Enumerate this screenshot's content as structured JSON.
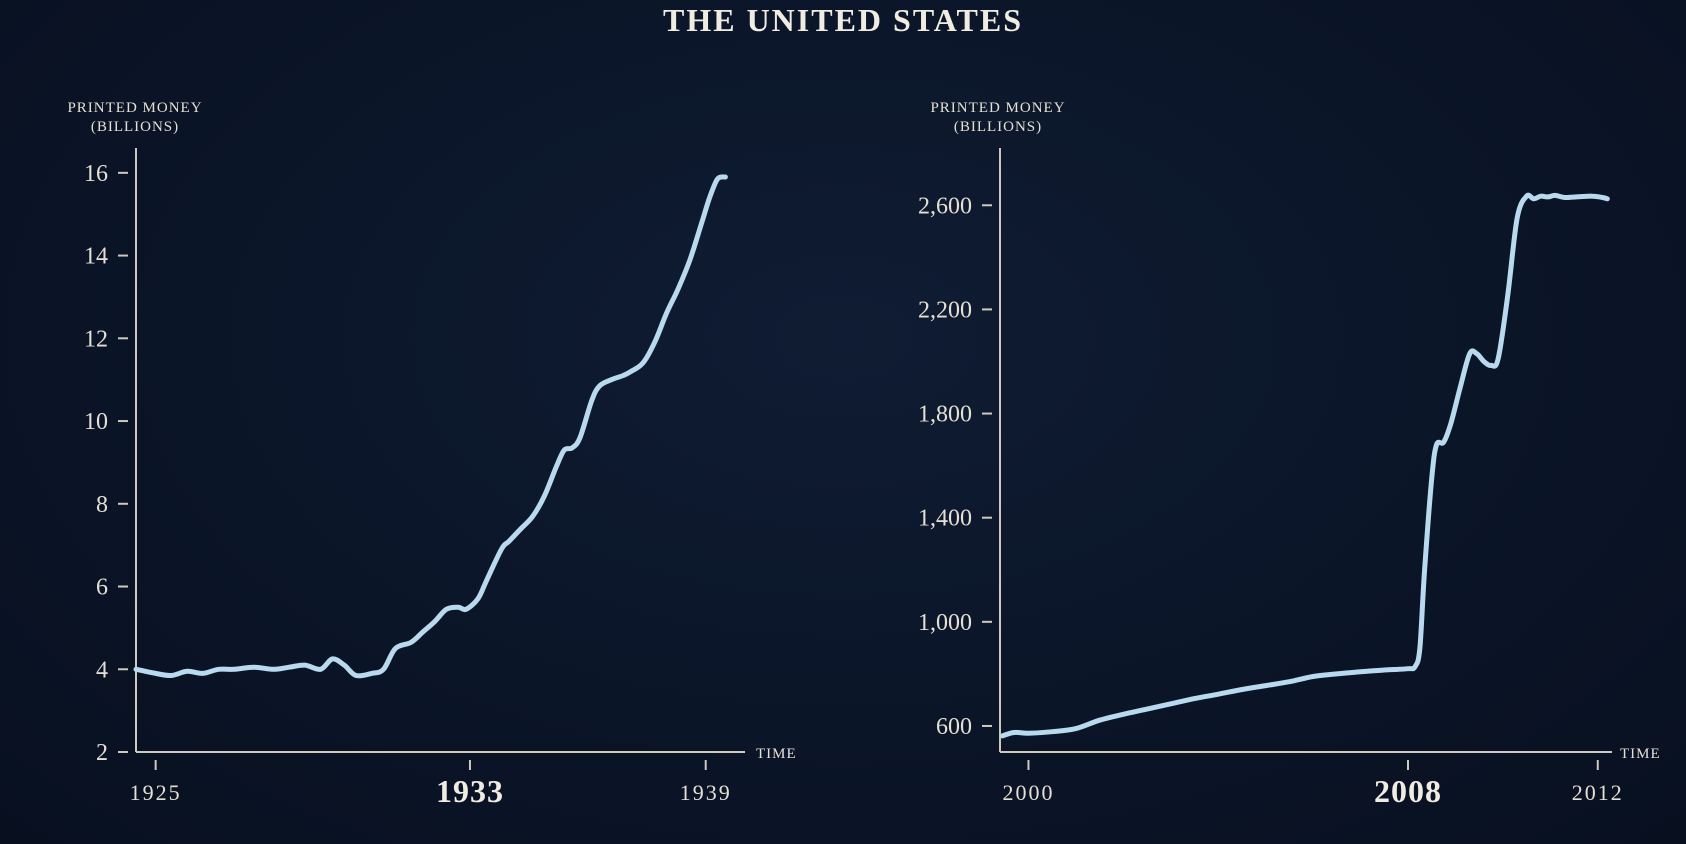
{
  "page": {
    "title": "THE UNITED STATES"
  },
  "colors": {
    "background": "#0b1528",
    "line": "#b9d9ee",
    "text": "#e6e0d4"
  },
  "chart_data": [
    {
      "type": "line",
      "ylabel": [
        "PRINTED MONEY",
        "(BILLIONS)"
      ],
      "xlabel": "TIME",
      "xlim": [
        1924.5,
        1940
      ],
      "ylim": [
        2,
        16.6
      ],
      "yticks": [
        {
          "value": 2,
          "label": "2"
        },
        {
          "value": 4,
          "label": "4"
        },
        {
          "value": 6,
          "label": "6"
        },
        {
          "value": 8,
          "label": "8"
        },
        {
          "value": 10,
          "label": "10"
        },
        {
          "value": 12,
          "label": "12"
        },
        {
          "value": 14,
          "label": "14"
        },
        {
          "value": 16,
          "label": "16"
        }
      ],
      "xticks": [
        {
          "value": 1925,
          "label": "1925",
          "emphasis": false
        },
        {
          "value": 1933,
          "label": "1933",
          "emphasis": true
        },
        {
          "value": 1939,
          "label": "1939",
          "emphasis": false
        }
      ],
      "series": [
        {
          "name": "Printed money",
          "x": [
            1924.5,
            1925.0,
            1925.4,
            1925.8,
            1926.2,
            1926.6,
            1927.0,
            1927.5,
            1928.0,
            1928.4,
            1928.8,
            1929.2,
            1929.5,
            1929.8,
            1930.1,
            1930.5,
            1930.8,
            1931.1,
            1931.5,
            1931.8,
            1932.1,
            1932.4,
            1932.7,
            1932.9,
            1933.2,
            1933.4,
            1933.8,
            1934.0,
            1934.3,
            1934.6,
            1934.9,
            1935.2,
            1935.4,
            1935.6,
            1935.8,
            1936.1,
            1936.3,
            1936.6,
            1936.9,
            1937.1,
            1937.4,
            1937.7,
            1938.0,
            1938.3,
            1938.6,
            1938.9,
            1939.1,
            1939.3,
            1939.5
          ],
          "y": [
            4.0,
            3.9,
            3.85,
            3.95,
            3.9,
            4.0,
            4.0,
            4.05,
            4.0,
            4.05,
            4.1,
            4.0,
            4.25,
            4.1,
            3.85,
            3.9,
            4.0,
            4.5,
            4.65,
            4.9,
            5.15,
            5.45,
            5.5,
            5.45,
            5.7,
            6.1,
            6.9,
            7.1,
            7.4,
            7.7,
            8.2,
            8.9,
            9.3,
            9.35,
            9.6,
            10.5,
            10.85,
            11.0,
            11.1,
            11.2,
            11.4,
            11.9,
            12.6,
            13.2,
            13.9,
            14.8,
            15.4,
            15.85,
            15.9
          ]
        }
      ]
    },
    {
      "type": "line",
      "ylabel": [
        "PRINTED MONEY",
        "(BILLIONS)"
      ],
      "xlabel": "TIME",
      "xlim": [
        1999.4,
        2012.3
      ],
      "ylim": [
        500,
        2820
      ],
      "yticks": [
        {
          "value": 600,
          "label": "600"
        },
        {
          "value": 1000,
          "label": "1,000"
        },
        {
          "value": 1400,
          "label": "1,400"
        },
        {
          "value": 1800,
          "label": "1,800"
        },
        {
          "value": 2200,
          "label": "2,200"
        },
        {
          "value": 2600,
          "label": "2,600"
        }
      ],
      "xticks": [
        {
          "value": 2000,
          "label": "2000",
          "emphasis": false
        },
        {
          "value": 2008,
          "label": "2008",
          "emphasis": true
        },
        {
          "value": 2012,
          "label": "2012",
          "emphasis": false
        }
      ],
      "series": [
        {
          "name": "Printed money",
          "x": [
            1999.45,
            1999.7,
            2000.0,
            2000.5,
            2001.0,
            2001.5,
            2002.0,
            2002.5,
            2003.0,
            2003.5,
            2004.0,
            2004.5,
            2005.0,
            2005.5,
            2006.0,
            2006.5,
            2007.0,
            2007.5,
            2008.0,
            2008.15,
            2008.25,
            2008.35,
            2008.5,
            2008.6,
            2008.75,
            2008.9,
            2009.1,
            2009.3,
            2009.45,
            2009.6,
            2009.75,
            2009.9,
            2010.1,
            2010.3,
            2010.5,
            2010.65,
            2010.8,
            2010.95,
            2011.1,
            2011.3,
            2011.6,
            2011.9,
            2012.1,
            2012.2
          ],
          "y": [
            562,
            575,
            572,
            578,
            590,
            622,
            645,
            665,
            685,
            705,
            722,
            740,
            755,
            770,
            790,
            800,
            808,
            815,
            820,
            828,
            900,
            1200,
            1550,
            1680,
            1690,
            1760,
            1900,
            2030,
            2030,
            2000,
            1985,
            2010,
            2250,
            2550,
            2635,
            2625,
            2635,
            2632,
            2638,
            2630,
            2633,
            2635,
            2630,
            2625
          ]
        }
      ]
    }
  ]
}
